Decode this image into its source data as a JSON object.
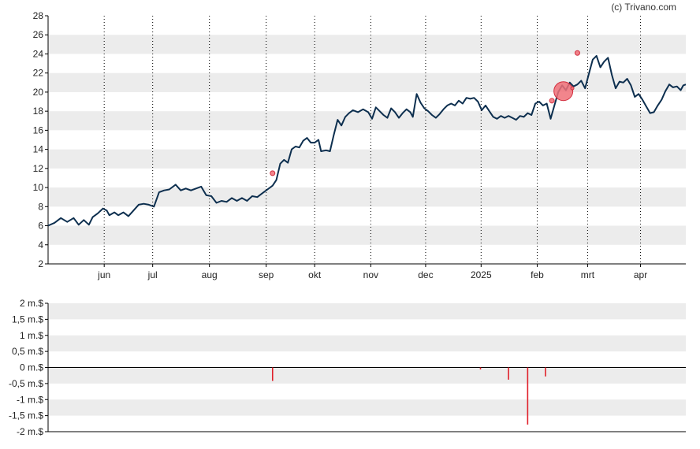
{
  "credit": "(c) Trivano.com",
  "colors": {
    "price_line": "#0d2f4f",
    "bubble_fill": "#f07078",
    "bubble_stroke": "#d23040",
    "bar": "#e0202a",
    "band": "#ececec",
    "axis": "#000000",
    "grid_dots": "#000000"
  },
  "chart_data": [
    {
      "type": "line",
      "name": "price",
      "ylim": [
        2,
        28
      ],
      "yticks": [
        2,
        4,
        6,
        8,
        10,
        12,
        14,
        16,
        18,
        20,
        22,
        24,
        26,
        28
      ],
      "xlim": [
        0,
        100
      ],
      "xticks": [
        {
          "label": "jun",
          "x": 8.8
        },
        {
          "label": "jul",
          "x": 16.4
        },
        {
          "label": "aug",
          "x": 25.3
        },
        {
          "label": "sep",
          "x": 34.2
        },
        {
          "label": "okt",
          "x": 41.8
        },
        {
          "label": "nov",
          "x": 50.6
        },
        {
          "label": "dec",
          "x": 59.2
        },
        {
          "label": "2025",
          "x": 67.9
        },
        {
          "label": "feb",
          "x": 76.7
        },
        {
          "label": "mrt",
          "x": 84.6
        },
        {
          "label": "apr",
          "x": 92.9
        }
      ],
      "grid": "vertical dotted at month ticks, alternating horizontal bands",
      "points": [
        [
          0,
          6.0
        ],
        [
          1,
          6.3
        ],
        [
          2,
          6.8
        ],
        [
          3,
          6.4
        ],
        [
          4,
          6.8
        ],
        [
          4.8,
          6.1
        ],
        [
          5.6,
          6.6
        ],
        [
          6.4,
          6.1
        ],
        [
          7,
          6.9
        ],
        [
          7.8,
          7.3
        ],
        [
          8.6,
          7.8
        ],
        [
          9.2,
          7.6
        ],
        [
          9.6,
          7.1
        ],
        [
          10.4,
          7.4
        ],
        [
          11,
          7.1
        ],
        [
          11.8,
          7.4
        ],
        [
          12.6,
          7.0
        ],
        [
          13.4,
          7.6
        ],
        [
          14.2,
          8.2
        ],
        [
          15,
          8.3
        ],
        [
          15.8,
          8.2
        ],
        [
          16.6,
          8.0
        ],
        [
          17.4,
          9.5
        ],
        [
          18.2,
          9.7
        ],
        [
          19,
          9.8
        ],
        [
          20,
          10.3
        ],
        [
          20.8,
          9.7
        ],
        [
          21.6,
          9.9
        ],
        [
          22.4,
          9.7
        ],
        [
          23.2,
          9.9
        ],
        [
          24,
          10.1
        ],
        [
          24.8,
          9.2
        ],
        [
          25.6,
          9.1
        ],
        [
          26.4,
          8.4
        ],
        [
          27.2,
          8.6
        ],
        [
          28,
          8.5
        ],
        [
          28.8,
          8.9
        ],
        [
          29.6,
          8.6
        ],
        [
          30.4,
          8.9
        ],
        [
          31.2,
          8.6
        ],
        [
          32,
          9.1
        ],
        [
          32.8,
          9.0
        ],
        [
          33.6,
          9.4
        ],
        [
          34.4,
          9.8
        ],
        [
          35.2,
          10.2
        ],
        [
          35.8,
          10.8
        ],
        [
          36.4,
          12.5
        ],
        [
          37,
          12.9
        ],
        [
          37.6,
          12.6
        ],
        [
          38.2,
          14.0
        ],
        [
          38.8,
          14.3
        ],
        [
          39.4,
          14.2
        ],
        [
          40,
          14.9
        ],
        [
          40.6,
          15.2
        ],
        [
          41.2,
          14.7
        ],
        [
          41.8,
          14.7
        ],
        [
          42.4,
          15.0
        ],
        [
          42.8,
          13.8
        ],
        [
          43.6,
          13.9
        ],
        [
          44.2,
          13.8
        ],
        [
          44.8,
          15.5
        ],
        [
          45.4,
          17.1
        ],
        [
          46,
          16.5
        ],
        [
          46.6,
          17.4
        ],
        [
          47.2,
          17.8
        ],
        [
          47.8,
          18.1
        ],
        [
          48.6,
          17.9
        ],
        [
          49.4,
          18.2
        ],
        [
          50.2,
          17.9
        ],
        [
          50.8,
          17.2
        ],
        [
          51.4,
          18.4
        ],
        [
          52,
          18.0
        ],
        [
          52.6,
          17.6
        ],
        [
          53.2,
          17.3
        ],
        [
          53.8,
          18.3
        ],
        [
          54.4,
          17.9
        ],
        [
          55,
          17.3
        ],
        [
          55.6,
          17.8
        ],
        [
          56.2,
          18.2
        ],
        [
          56.8,
          17.9
        ],
        [
          57.2,
          17.4
        ],
        [
          57.8,
          19.8
        ],
        [
          58.4,
          18.9
        ],
        [
          59,
          18.3
        ],
        [
          59.6,
          18.0
        ],
        [
          60.2,
          17.6
        ],
        [
          60.8,
          17.3
        ],
        [
          61.4,
          17.7
        ],
        [
          62,
          18.2
        ],
        [
          62.6,
          18.6
        ],
        [
          63.2,
          18.8
        ],
        [
          63.8,
          18.6
        ],
        [
          64.4,
          19.1
        ],
        [
          65,
          18.8
        ],
        [
          65.6,
          19.4
        ],
        [
          66.2,
          19.3
        ],
        [
          66.8,
          19.4
        ],
        [
          67.4,
          19.0
        ],
        [
          68,
          18.1
        ],
        [
          68.6,
          18.6
        ],
        [
          69.2,
          18.0
        ],
        [
          69.8,
          17.4
        ],
        [
          70.4,
          17.2
        ],
        [
          71,
          17.5
        ],
        [
          71.6,
          17.3
        ],
        [
          72.2,
          17.5
        ],
        [
          72.8,
          17.3
        ],
        [
          73.4,
          17.1
        ],
        [
          74,
          17.5
        ],
        [
          74.6,
          17.4
        ],
        [
          75.2,
          17.8
        ],
        [
          75.8,
          17.6
        ],
        [
          76.4,
          18.8
        ],
        [
          77,
          19.0
        ],
        [
          77.6,
          18.6
        ],
        [
          78.2,
          18.8
        ],
        [
          78.8,
          17.2
        ],
        [
          79.4,
          18.6
        ],
        [
          80,
          20.0
        ],
        [
          80.6,
          20.7
        ],
        [
          81.2,
          20.2
        ],
        [
          81.8,
          21.0
        ],
        [
          82.4,
          20.6
        ],
        [
          83,
          20.8
        ],
        [
          83.6,
          21.2
        ],
        [
          84.2,
          20.4
        ],
        [
          84.8,
          21.9
        ],
        [
          85.4,
          23.4
        ],
        [
          86,
          23.8
        ],
        [
          86.6,
          22.6
        ],
        [
          87.2,
          23.2
        ],
        [
          87.8,
          23.6
        ],
        [
          88.4,
          21.8
        ],
        [
          89,
          20.4
        ],
        [
          89.6,
          21.1
        ],
        [
          90.2,
          21.0
        ],
        [
          90.8,
          21.4
        ],
        [
          91.4,
          20.7
        ],
        [
          92,
          19.5
        ],
        [
          92.6,
          19.8
        ],
        [
          93.2,
          19.2
        ],
        [
          93.8,
          18.5
        ],
        [
          94.4,
          17.8
        ],
        [
          95,
          17.9
        ],
        [
          95.6,
          18.6
        ],
        [
          96.2,
          19.2
        ],
        [
          96.8,
          20.1
        ],
        [
          97.4,
          20.8
        ],
        [
          98,
          20.5
        ],
        [
          98.6,
          20.6
        ],
        [
          99.2,
          20.2
        ],
        [
          99.6,
          20.7
        ],
        [
          100,
          20.8
        ]
      ],
      "markers": [
        {
          "x": 35.2,
          "y": 11.5,
          "size": "small"
        },
        {
          "x": 79.0,
          "y": 19.1,
          "size": "small"
        },
        {
          "x": 80.8,
          "y": 20.1,
          "size": "large"
        },
        {
          "x": 82.2,
          "y": 20.4,
          "size": "tiny"
        },
        {
          "x": 83.0,
          "y": 24.1,
          "size": "small"
        }
      ]
    },
    {
      "type": "bar",
      "name": "volume",
      "ylim": [
        -2,
        2
      ],
      "yticks": [
        {
          "value": 2,
          "label": "2 m.$"
        },
        {
          "value": 1.5,
          "label": "1,5 m.$"
        },
        {
          "value": 1,
          "label": "1 m.$"
        },
        {
          "value": 0.5,
          "label": "0,5 m.$"
        },
        {
          "value": 0,
          "label": "0 m.$"
        },
        {
          "value": -0.5,
          "label": "-0,5 m.$"
        },
        {
          "value": -1,
          "label": "-1 m.$"
        },
        {
          "value": -1.5,
          "label": "-1,5 m.$"
        },
        {
          "value": -2,
          "label": "-2 m.$"
        }
      ],
      "xlim": [
        0,
        100
      ],
      "bars": [
        {
          "x": 35.2,
          "value": -0.42
        },
        {
          "x": 67.8,
          "value": -0.06
        },
        {
          "x": 72.2,
          "value": -0.38
        },
        {
          "x": 75.2,
          "value": -1.78
        },
        {
          "x": 78.0,
          "value": -0.28
        }
      ]
    }
  ]
}
